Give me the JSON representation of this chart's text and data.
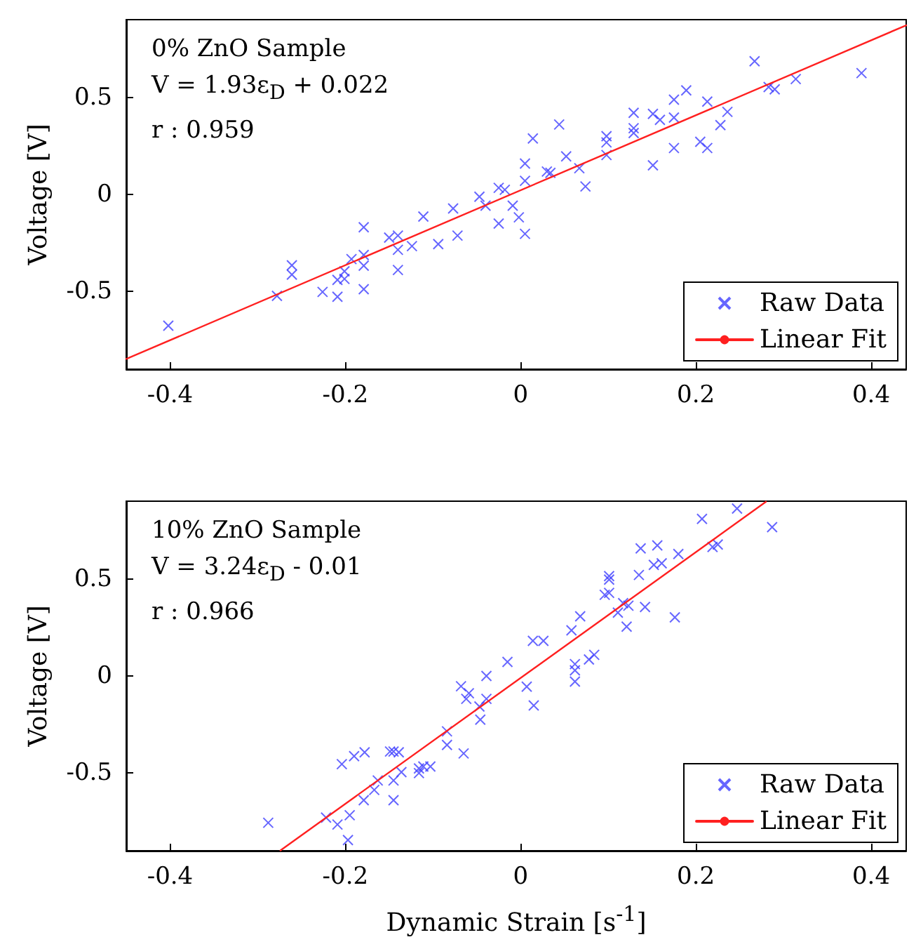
{
  "chart_data": [
    {
      "type": "scatter",
      "ylabel": "Voltage [V]",
      "annotations": [
        "0% ZnO Sample",
        "V = 1.93ε$_{D}$ + 0.022",
        "r : 0.959"
      ],
      "xlim": [
        -0.45,
        0.44
      ],
      "xticks": [
        -0.4,
        -0.2,
        0,
        0.2,
        0.4
      ],
      "ylim": [
        -0.9,
        0.9
      ],
      "yticks": [
        -0.5,
        0,
        0.5
      ],
      "grid": false,
      "legend": "bottom right",
      "series": [
        {
          "name": "Raw Data",
          "type": "scatter",
          "marker": "cross",
          "color": "#4040ff",
          "x": [
            -0.402,
            -0.278,
            -0.261,
            -0.261,
            -0.226,
            -0.209,
            -0.209,
            -0.201,
            -0.201,
            -0.193,
            -0.179,
            -0.179,
            -0.179,
            -0.179,
            -0.15,
            -0.14,
            -0.14,
            -0.14,
            -0.124,
            -0.111,
            -0.094,
            -0.077,
            -0.072,
            -0.047,
            -0.04,
            -0.025,
            -0.018,
            -0.025,
            -0.009,
            -0.002,
            0.005,
            0.005,
            0.005,
            0.014,
            0.03,
            0.034,
            0.044,
            0.052,
            0.067,
            0.074,
            0.098,
            0.098,
            0.098,
            0.129,
            0.129,
            0.129,
            0.151,
            0.151,
            0.159,
            0.175,
            0.175,
            0.175,
            0.189,
            0.205,
            0.213,
            0.213,
            0.228,
            0.236,
            0.267,
            0.283,
            0.29,
            0.314,
            0.389
          ],
          "values": [
            -0.676,
            -0.522,
            -0.365,
            -0.413,
            -0.502,
            -0.527,
            -0.44,
            -0.435,
            -0.396,
            -0.333,
            -0.169,
            -0.312,
            -0.367,
            -0.488,
            -0.222,
            -0.212,
            -0.285,
            -0.389,
            -0.266,
            -0.114,
            -0.256,
            -0.072,
            -0.212,
            -0.012,
            -0.058,
            0.034,
            0.024,
            -0.15,
            -0.058,
            -0.118,
            -0.203,
            0.07,
            0.159,
            0.288,
            0.118,
            0.111,
            0.36,
            0.196,
            0.135,
            0.041,
            0.3,
            0.268,
            0.203,
            0.42,
            0.341,
            0.316,
            0.415,
            0.15,
            0.384,
            0.488,
            0.396,
            0.239,
            0.536,
            0.271,
            0.478,
            0.239,
            0.357,
            0.425,
            0.686,
            0.553,
            0.541,
            0.594,
            0.625
          ]
        },
        {
          "name": "Linear Fit",
          "type": "line",
          "marker": "none",
          "line_style": "solid",
          "color": "#ff2020",
          "x": [
            -0.45,
            0.44
          ],
          "values": [
            -0.847,
            0.871
          ]
        }
      ]
    },
    {
      "type": "scatter",
      "xlabel": "Dynamic Strain [s$^{-1}$]",
      "ylabel": "Voltage [V]",
      "annotations": [
        "10% ZnO Sample",
        "V = 3.24ε$_{D}$ - 0.01",
        "r : 0.966"
      ],
      "xlim": [
        -0.45,
        0.44
      ],
      "xticks": [
        -0.4,
        -0.2,
        0,
        0.2,
        0.4
      ],
      "ylim": [
        -0.9,
        0.9
      ],
      "yticks": [
        -0.5,
        0,
        0.5
      ],
      "grid": false,
      "legend": "bottom right",
      "series": [
        {
          "name": "Raw Data",
          "type": "scatter",
          "marker": "cross",
          "color": "#4040ff",
          "x": [
            -0.288,
            -0.222,
            -0.209,
            -0.204,
            -0.197,
            -0.195,
            -0.19,
            -0.179,
            -0.178,
            -0.167,
            -0.163,
            -0.149,
            -0.145,
            -0.139,
            -0.145,
            -0.145,
            -0.136,
            -0.116,
            -0.116,
            -0.111,
            -0.103,
            -0.084,
            -0.084,
            -0.065,
            -0.068,
            -0.062,
            -0.059,
            -0.047,
            -0.046,
            -0.039,
            -0.039,
            -0.015,
            0.007,
            0.015,
            0.014,
            0.026,
            0.058,
            0.062,
            0.062,
            0.062,
            0.068,
            0.078,
            0.084,
            0.096,
            0.101,
            0.101,
            0.101,
            0.111,
            0.117,
            0.123,
            0.121,
            0.135,
            0.137,
            0.142,
            0.152,
            0.156,
            0.161,
            0.176,
            0.18,
            0.207,
            0.219,
            0.225,
            0.247,
            0.287
          ],
          "values": [
            -0.756,
            -0.729,
            -0.765,
            -0.454,
            -0.845,
            -0.717,
            -0.413,
            -0.64,
            -0.393,
            -0.587,
            -0.538,
            -0.389,
            -0.389,
            -0.393,
            -0.538,
            -0.64,
            -0.495,
            -0.476,
            -0.5,
            -0.466,
            -0.466,
            -0.285,
            -0.355,
            -0.399,
            -0.053,
            -0.118,
            -0.089,
            -0.157,
            -0.225,
            0,
            -0.118,
            0.072,
            -0.055,
            -0.152,
            0.181,
            0.181,
            0.235,
            0.061,
            0.029,
            -0.029,
            0.307,
            0.085,
            0.109,
            0.418,
            0.428,
            0.514,
            0.496,
            0.326,
            0.375,
            0.362,
            0.254,
            0.52,
            0.657,
            0.355,
            0.572,
            0.672,
            0.58,
            0.302,
            0.628,
            0.809,
            0.664,
            0.677,
            0.862,
            0.766
          ]
        },
        {
          "name": "Linear Fit",
          "type": "line",
          "marker": "none",
          "line_style": "solid",
          "color": "#ff2020",
          "x": [
            -0.274,
            0.28
          ],
          "values": [
            -0.898,
            0.897
          ]
        }
      ]
    }
  ]
}
